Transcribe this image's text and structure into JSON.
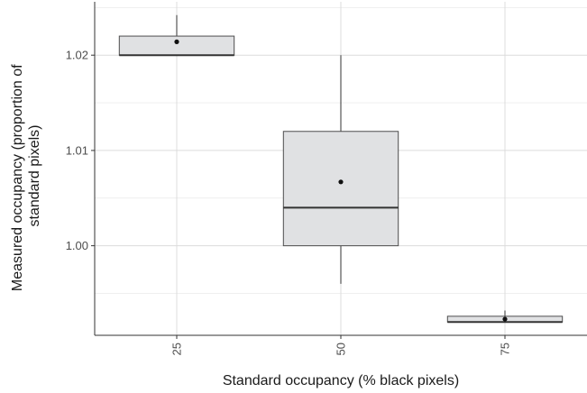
{
  "chart_data": {
    "type": "box",
    "xlabel": "Standard occupancy (% black pixels)",
    "ylabel_line1": "Measured occupancy (proportion of",
    "ylabel_line2": "standard pixels)",
    "categories": [
      "25",
      "50",
      "75"
    ],
    "y_ticks": [
      1.0,
      1.01,
      1.02
    ],
    "y_tick_labels": [
      "1.00",
      "1.01",
      "1.02"
    ],
    "ylim": [
      0.9906,
      1.0256
    ],
    "grid": true,
    "boxes": [
      {
        "category": "25",
        "whisker_low": 1.02,
        "q1": 1.02,
        "median": 1.02,
        "q3": 1.022,
        "whisker_high": 1.0242,
        "mean": 1.0214
      },
      {
        "category": "50",
        "whisker_low": 0.996,
        "q1": 1.0,
        "median": 1.004,
        "q3": 1.012,
        "whisker_high": 1.02,
        "mean": 1.0067
      },
      {
        "category": "75",
        "whisker_low": 0.992,
        "q1": 0.992,
        "median": 0.992,
        "q3": 0.9926,
        "whisker_high": 0.9932,
        "mean": 0.9923
      }
    ],
    "colors": {
      "box_fill": "#e0e1e3",
      "box_stroke": "#4d4d4d",
      "median": "#333333",
      "mean_point": "#111111",
      "grid": "#e6e6e6"
    }
  }
}
